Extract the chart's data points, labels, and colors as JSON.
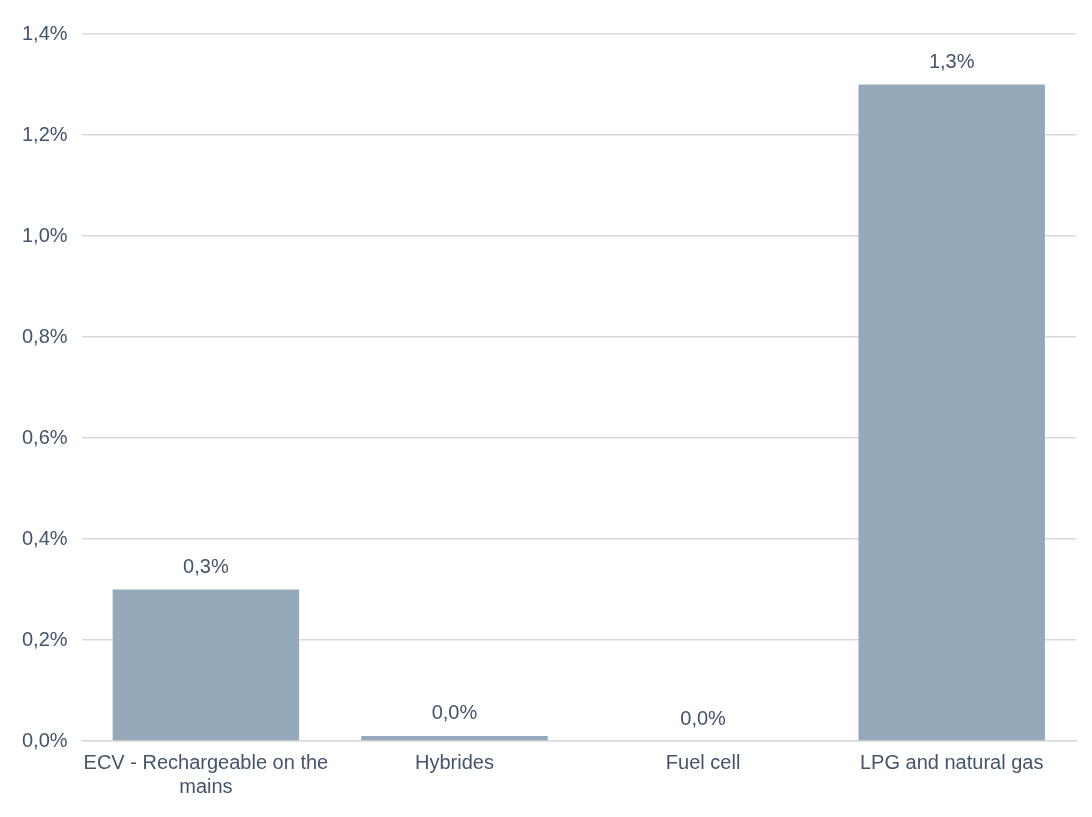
{
  "chart_data": {
    "type": "bar",
    "categories": [
      "ECV - Rechargeable on the mains",
      "Hybrides",
      "Fuel cell",
      "LPG and natural gas"
    ],
    "values": [
      0.3,
      0.01,
      0,
      1.3
    ],
    "value_labels": [
      "0,3%",
      "0,0%",
      "0,0%",
      "1,3%"
    ],
    "color": "#95a9bb",
    "ylim": [
      0,
      1.4
    ],
    "yticks": [
      {
        "value": 0,
        "label": "0,0%"
      },
      {
        "value": 0.2,
        "label": "0,2%"
      },
      {
        "value": 0.4,
        "label": "0,4%"
      },
      {
        "value": 0.6,
        "label": "0,6%"
      },
      {
        "value": 0.8,
        "label": "0,8%"
      },
      {
        "value": 1.0,
        "label": "1,0%"
      },
      {
        "value": 1.2,
        "label": "1,2%"
      },
      {
        "value": 1.4,
        "label": "1,4%"
      }
    ],
    "grid": "y",
    "legend": false
  }
}
